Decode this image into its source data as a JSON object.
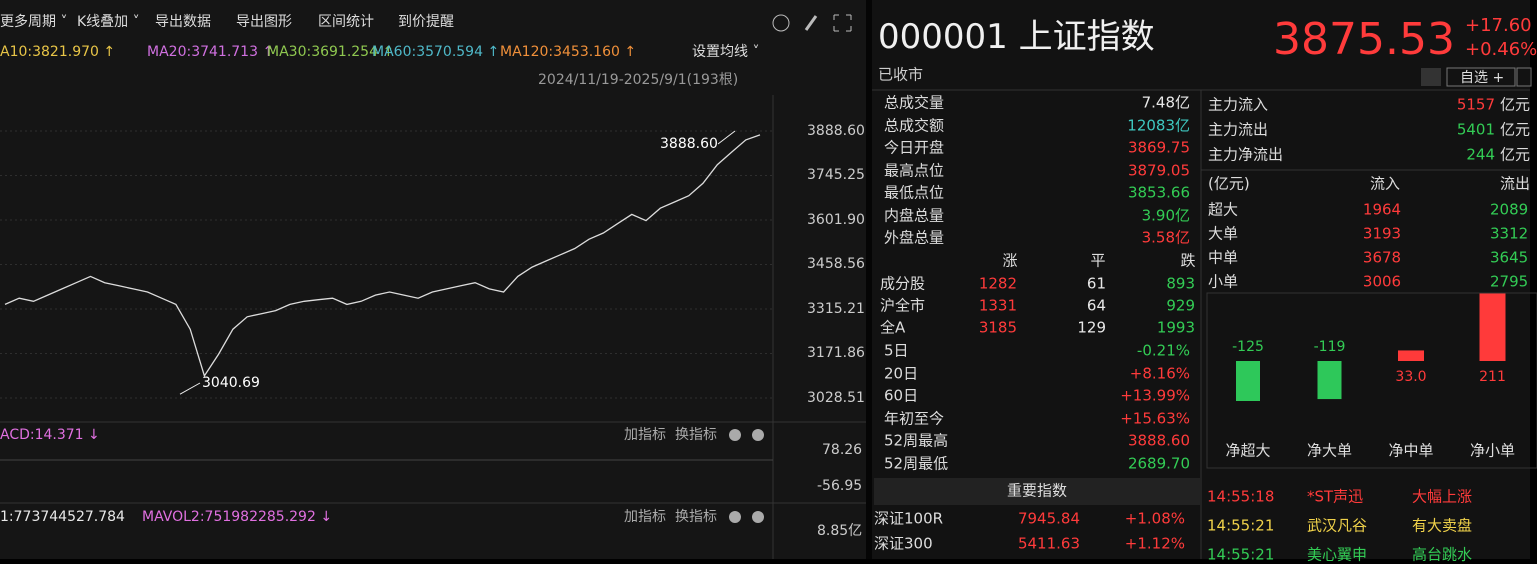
{
  "toolbar": [
    "更多周期 ˅",
    "K线叠加 ˅",
    "导出数据",
    "导出图形",
    "区间统计",
    "到价提醒"
  ],
  "ma_legend": [
    {
      "text": "A10:3821.970 ↑",
      "color": "#e8c547"
    },
    {
      "text": "MA20:3741.713 ↑",
      "color": "#d070e0"
    },
    {
      "text": "MA30:3691.254 ↑",
      "color": "#8fc850"
    },
    {
      "text": "MA60:3570.594 ↑",
      "color": "#4fb8c8"
    },
    {
      "text": "MA120:3453.160 ↑",
      "color": "#f0903a"
    }
  ],
  "ma_settings": "设置均线 ˅",
  "range": "2024/11/19-2025/9/1(193根)",
  "price_chart": {
    "type": "line",
    "color": "#dcdcdc",
    "ylim": [
      2957.5,
      4004.6
    ],
    "yticks": [
      {
        "value": 3888.6,
        "label": "3888.60"
      },
      3745.25,
      {
        "value": 3601.9,
        "label": "3601.90"
      },
      3458.56,
      3315.21,
      3171.86,
      3028.51
    ],
    "values": [
      3330,
      3350,
      3340,
      3360,
      3380,
      3400,
      3420,
      3400,
      3390,
      3380,
      3370,
      3350,
      3330,
      3250,
      3100,
      3170,
      3250,
      3290,
      3300,
      3310,
      3330,
      3340,
      3345,
      3350,
      3330,
      3340,
      3360,
      3370,
      3360,
      3350,
      3370,
      3380,
      3390,
      3400,
      3380,
      3370,
      3420,
      3450,
      3470,
      3490,
      3510,
      3540,
      3560,
      3590,
      3620,
      3600,
      3640,
      3660,
      3680,
      3720,
      3780,
      3820,
      3860,
      3876
    ],
    "annotations": [
      {
        "value": 3888.6,
        "label": "3888.60"
      },
      {
        "value": 3040.69,
        "label": "3040.69"
      }
    ]
  },
  "macd": {
    "label": "ACD:14.371 ↓",
    "ticks": [
      "78.26",
      "-56.95"
    ]
  },
  "volume": {
    "labels": [
      "1:773744527.784",
      "MAVOL2:751982285.292 ↓"
    ],
    "tick": "8.85亿"
  },
  "indicator_buttons": [
    "加指标",
    "换指标"
  ],
  "quote": {
    "code_name": "000001 上证指数",
    "price": "3875.53",
    "change": "+17.60",
    "change_pct": "+0.46%",
    "status": "已收市",
    "watch": "自选 +"
  },
  "stats": [
    {
      "label": "总成交量",
      "value": "7.48亿",
      "color": "white"
    },
    {
      "label": "总成交额",
      "value": "12083亿",
      "color": "cyan"
    },
    {
      "label": "今日开盘",
      "value": "3869.75",
      "color": "red"
    },
    {
      "label": "最高点位",
      "value": "3879.05",
      "color": "red"
    },
    {
      "label": "最低点位",
      "value": "3853.66",
      "color": "green"
    },
    {
      "label": "内盘总量",
      "value": "3.90亿",
      "color": "green"
    },
    {
      "label": "外盘总量",
      "value": "3.58亿",
      "color": "red"
    }
  ],
  "breadth": {
    "header": [
      "涨",
      "平",
      "跌"
    ],
    "rows": [
      [
        "成分股",
        "1282",
        "61",
        "893"
      ],
      [
        "沪全市",
        "1331",
        "64",
        "929"
      ],
      [
        "全A",
        "3185",
        "129",
        "1993"
      ]
    ]
  },
  "returns": [
    {
      "label": "5日",
      "value": "-0.21%",
      "color": "green"
    },
    {
      "label": "20日",
      "value": "+8.16%",
      "color": "red"
    },
    {
      "label": "60日",
      "value": "+13.99%",
      "color": "red"
    },
    {
      "label": "年初至今",
      "value": "+15.63%",
      "color": "red"
    },
    {
      "label": "52周最高",
      "value": "3888.60",
      "color": "red"
    },
    {
      "label": "52周最低",
      "value": "2689.70",
      "color": "green"
    }
  ],
  "index_title": "重要指数",
  "indices": [
    [
      "深证100R",
      "7945.84",
      "+1.08%"
    ],
    [
      "深证300",
      "5411.63",
      "+1.12%"
    ]
  ],
  "flow": [
    {
      "label": "主力流入",
      "value": "5157",
      "unit": "亿元",
      "color": "red"
    },
    {
      "label": "主力流出",
      "value": "5401",
      "unit": "亿元",
      "color": "green"
    },
    {
      "label": "主力净流出",
      "value": "244",
      "unit": "亿元",
      "color": "green"
    }
  ],
  "flow_table": {
    "header": [
      "(亿元)",
      "流入",
      "流出"
    ],
    "rows": [
      [
        "超大",
        "1964",
        "2089"
      ],
      [
        "大单",
        "3193",
        "3312"
      ],
      [
        "中单",
        "3678",
        "3645"
      ],
      [
        "小单",
        "3006",
        "2795"
      ]
    ]
  },
  "net_flow_chart": {
    "type": "bar",
    "categories": [
      "净超大",
      "净大单",
      "净中单",
      "净小单"
    ],
    "values": [
      -125,
      -119,
      33,
      211
    ],
    "value_labels": [
      "-125",
      "-119",
      "33.0",
      "211"
    ],
    "up_color": "#ff3a3a",
    "down_color": "#2ec85a"
  },
  "ticker": [
    {
      "cells": [
        "14:55:18",
        "*ST声迅",
        "大幅上涨"
      ],
      "color": "red"
    },
    {
      "cells": [
        "14:55:21",
        "武汉凡谷",
        "有大卖盘"
      ],
      "color": "yellow"
    },
    {
      "cells": [
        "14:55:21",
        "美心翼申",
        "高台跳水"
      ],
      "color": "green"
    }
  ]
}
